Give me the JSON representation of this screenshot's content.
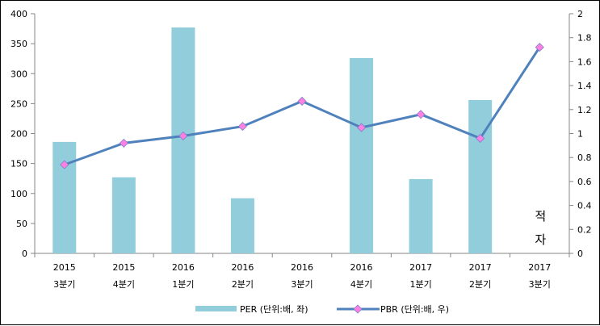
{
  "chart_data": {
    "type": "bar+line",
    "categories": [
      [
        "2015",
        "3분기"
      ],
      [
        "2015",
        "4분기"
      ],
      [
        "2016",
        "1분기"
      ],
      [
        "2016",
        "2분기"
      ],
      [
        "2016",
        "3분기"
      ],
      [
        "2016",
        "4분기"
      ],
      [
        "2017",
        "1분기"
      ],
      [
        "2017",
        "2분기"
      ],
      [
        "2017",
        "3분기"
      ]
    ],
    "series": [
      {
        "name": "PER (단위:배, 좌)",
        "type": "bar",
        "axis": "left",
        "color": "#92CDDC",
        "values": [
          186,
          127,
          377,
          92,
          null,
          326,
          124,
          256,
          null
        ]
      },
      {
        "name": "PBR (단위:배, 우)",
        "type": "line",
        "axis": "right",
        "color": "#4F81BD",
        "marker_color": "#FF80E0",
        "values": [
          0.74,
          0.92,
          0.98,
          1.06,
          1.27,
          1.05,
          1.16,
          0.96,
          1.72
        ]
      }
    ],
    "left_axis": {
      "range": [
        0,
        400
      ],
      "ticks": [
        "0",
        "50",
        "100",
        "150",
        "200",
        "250",
        "300",
        "350",
        "400"
      ]
    },
    "right_axis": {
      "range": [
        0,
        2
      ],
      "ticks": [
        "0",
        "0.2",
        "0.4",
        "0.6",
        "0.8",
        "1",
        "1.2",
        "1.4",
        "1.6",
        "1.8",
        "2"
      ]
    },
    "annotation": {
      "category_index": 8,
      "lines": [
        "적",
        "자"
      ]
    },
    "legend_position": "bottom",
    "grid": false
  }
}
